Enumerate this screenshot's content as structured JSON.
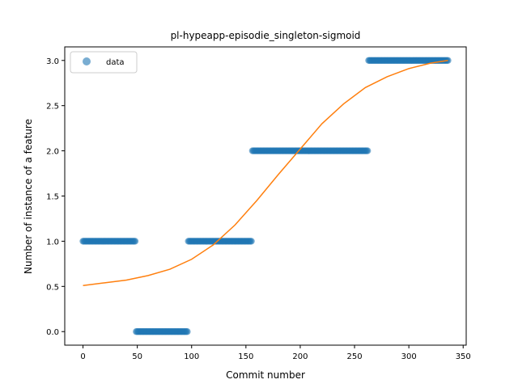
{
  "chart_data": {
    "type": "scatter",
    "title": "pl-hypeapp-episodie_singleton-sigmoid",
    "xlabel": "Commit number",
    "ylabel": "Number of instance of a feature",
    "xlim": [
      -16.8,
      352.8
    ],
    "ylim": [
      -0.15,
      3.15
    ],
    "xticks": [
      0,
      50,
      100,
      150,
      200,
      250,
      300,
      350
    ],
    "xtick_labels": [
      "0",
      "50",
      "100",
      "150",
      "200",
      "250",
      "300",
      "350"
    ],
    "yticks": [
      0.0,
      0.5,
      1.0,
      1.5,
      2.0,
      2.5,
      3.0
    ],
    "ytick_labels": [
      "0.0",
      "0.5",
      "1.0",
      "1.5",
      "2.0",
      "2.5",
      "3.0"
    ],
    "grid": false,
    "legend": {
      "position": "top-left",
      "entries": [
        "data"
      ]
    },
    "series": [
      {
        "name": "data",
        "kind": "scatter",
        "color": "#1f77b4",
        "segments": [
          {
            "x_start": 0,
            "x_end": 48,
            "y": 1
          },
          {
            "x_start": 49,
            "x_end": 96,
            "y": 0
          },
          {
            "x_start": 97,
            "x_end": 155,
            "y": 1
          },
          {
            "x_start": 156,
            "x_end": 262,
            "y": 2
          },
          {
            "x_start": 263,
            "x_end": 336,
            "y": 3
          }
        ]
      },
      {
        "kind": "line",
        "color": "#ff7f0e",
        "x": [
          0,
          20,
          40,
          60,
          80,
          100,
          120,
          140,
          160,
          180,
          200,
          220,
          240,
          260,
          280,
          300,
          320,
          336
        ],
        "y": [
          0.51,
          0.54,
          0.57,
          0.62,
          0.69,
          0.8,
          0.96,
          1.18,
          1.45,
          1.74,
          2.02,
          2.3,
          2.52,
          2.7,
          2.82,
          2.91,
          2.97,
          3.0
        ]
      }
    ]
  }
}
